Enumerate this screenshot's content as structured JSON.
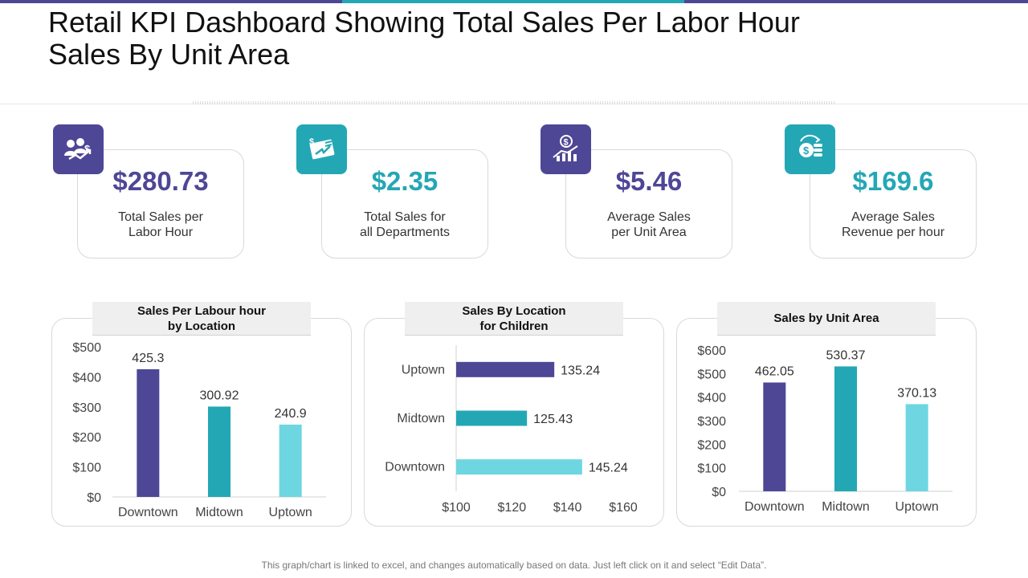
{
  "title": "Retail KPI Dashboard Showing Total Sales Per Labor Hour Sales By Unit Area",
  "colors": {
    "purple": "#4e4796",
    "teal": "#24a7b5",
    "light_teal": "#6dd6e1"
  },
  "kpis": [
    {
      "value": "$280.73",
      "label": "Total Sales per\nLabor Hour",
      "icon": "people-money-icon",
      "color": "#4e4796"
    },
    {
      "value": "$2.35",
      "label": "Total Sales for\nall Departments",
      "icon": "money-ticket-icon",
      "color": "#24a7b5"
    },
    {
      "value": "$5.46",
      "label": "Average Sales\nper Unit Area",
      "icon": "growth-dollar-icon",
      "color": "#4e4796"
    },
    {
      "value": "$169.6",
      "label": "Average Sales\nRevenue per hour",
      "icon": "coins-refresh-icon",
      "color": "#24a7b5"
    }
  ],
  "chart_data": [
    {
      "type": "bar",
      "title": "Sales Per Labour hour\nby Location",
      "categories": [
        "Downtown",
        "Midtown",
        "Uptown"
      ],
      "values": [
        425.3,
        300.92,
        240.9
      ],
      "value_labels": [
        "425.3",
        "300.92",
        "240.9"
      ],
      "ylim": [
        0,
        500
      ],
      "yticks": [
        0,
        100,
        200,
        300,
        400,
        500
      ],
      "ytick_labels": [
        "$0",
        "$100",
        "$200",
        "$300",
        "$400",
        "$500"
      ],
      "colors": [
        "#4e4796",
        "#24a7b5",
        "#6dd6e1"
      ]
    },
    {
      "type": "barh",
      "title": "Sales By Location\nfor Children",
      "categories": [
        "Uptown",
        "Midtown",
        "Downtown"
      ],
      "values": [
        135.24,
        125.43,
        145.24
      ],
      "value_labels": [
        "135.24",
        "125.43",
        "145.24"
      ],
      "xlim": [
        100,
        160
      ],
      "xticks": [
        100,
        120,
        140,
        160
      ],
      "xtick_labels": [
        "$100",
        "$120",
        "$140",
        "$160"
      ],
      "colors": [
        "#4e4796",
        "#24a7b5",
        "#6dd6e1"
      ]
    },
    {
      "type": "bar",
      "title": "Sales by Unit Area",
      "categories": [
        "Downtown",
        "Midtown",
        "Uptown"
      ],
      "values": [
        462.05,
        530.37,
        370.13
      ],
      "value_labels": [
        "462.05",
        "530.37",
        "370.13"
      ],
      "ylim": [
        0,
        600
      ],
      "yticks": [
        0,
        100,
        200,
        300,
        400,
        500,
        600
      ],
      "ytick_labels": [
        "$0",
        "$100",
        "$200",
        "$300",
        "$400",
        "$500",
        "$600"
      ],
      "colors": [
        "#4e4796",
        "#24a7b5",
        "#6dd6e1"
      ]
    }
  ],
  "footer": "This graph/chart is linked to excel, and changes automatically based on data. Just left click on it and select “Edit Data”."
}
